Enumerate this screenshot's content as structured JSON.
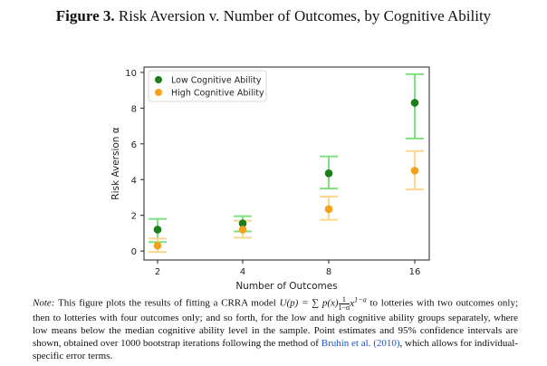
{
  "figure": {
    "label": "Figure 3.",
    "title": "Risk Aversion v. Number of Outcomes, by Cognitive Ability"
  },
  "chart_data": {
    "type": "scatter",
    "title": "",
    "xlabel": "Number of Outcomes",
    "ylabel": "Risk Aversion α",
    "x": [
      2,
      4,
      8,
      16
    ],
    "xticks": [
      "2",
      "4",
      "8",
      "16"
    ],
    "yticks": [
      "0",
      "2",
      "4",
      "6",
      "8",
      "10"
    ],
    "ylim": [
      -0.5,
      10.3
    ],
    "legend_position": "top-left",
    "series": [
      {
        "name": "Low Cognitive Ability",
        "color": "#1a7f1a",
        "ci_color": "#7fe07f",
        "values": [
          1.2,
          1.55,
          4.35,
          8.3
        ],
        "ci_low": [
          0.5,
          1.1,
          3.5,
          6.3
        ],
        "ci_high": [
          1.8,
          1.95,
          5.3,
          9.9
        ]
      },
      {
        "name": "High Cognitive Ability",
        "color": "#f5a21a",
        "ci_color": "#fbd68f",
        "values": [
          0.3,
          1.2,
          2.35,
          4.5
        ],
        "ci_low": [
          -0.05,
          0.75,
          1.75,
          3.45
        ],
        "ci_high": [
          0.7,
          1.7,
          3.05,
          5.6
        ]
      }
    ]
  },
  "note": {
    "label": "Note:",
    "text1": "This figure plots the results of fitting a CRRA model",
    "model": "U(p) = ∑ p(x)",
    "frac_num": "1",
    "frac_den": "1−α",
    "exponent": "x^{1−α}",
    "text2": "to lotteries with two outcomes only; then to lotteries with four outcomes only; and so forth, for the low and high cognitive ability groups separately, where low means below the median cognitive ability level in the sample. Point estimates and 95% confidence intervals are shown, obtained over 1000 bootstrap iterations following the method of",
    "citation": "Bruhin et al. (2010)",
    "text3": ", which allows for individual-specific error terms."
  }
}
